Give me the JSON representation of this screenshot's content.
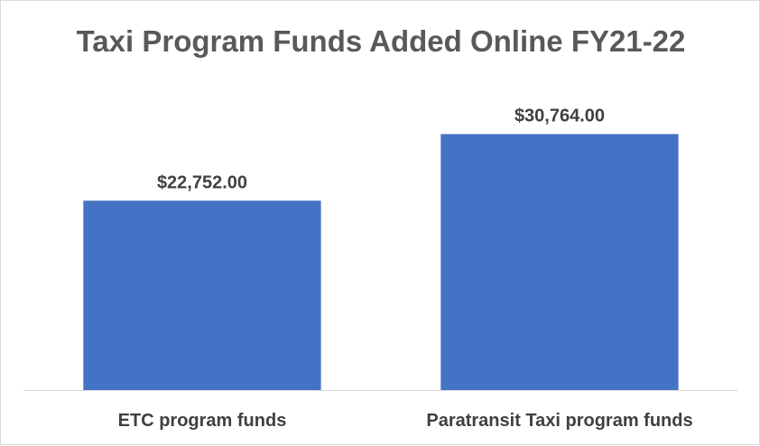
{
  "chart_data": {
    "type": "bar",
    "title": "Taxi Program Funds Added Online FY21-22",
    "categories": [
      "ETC program funds",
      "Paratransit Taxi program funds"
    ],
    "values": [
      22752.0,
      30764.0
    ],
    "data_labels": [
      "$22,752.00",
      "$30,764.00"
    ],
    "xlabel": "",
    "ylabel": "",
    "ylim": [
      0,
      37000
    ],
    "grid": false,
    "legend": "none",
    "bar_color": "#4472C4",
    "axis_color": "#d9d9d9"
  }
}
